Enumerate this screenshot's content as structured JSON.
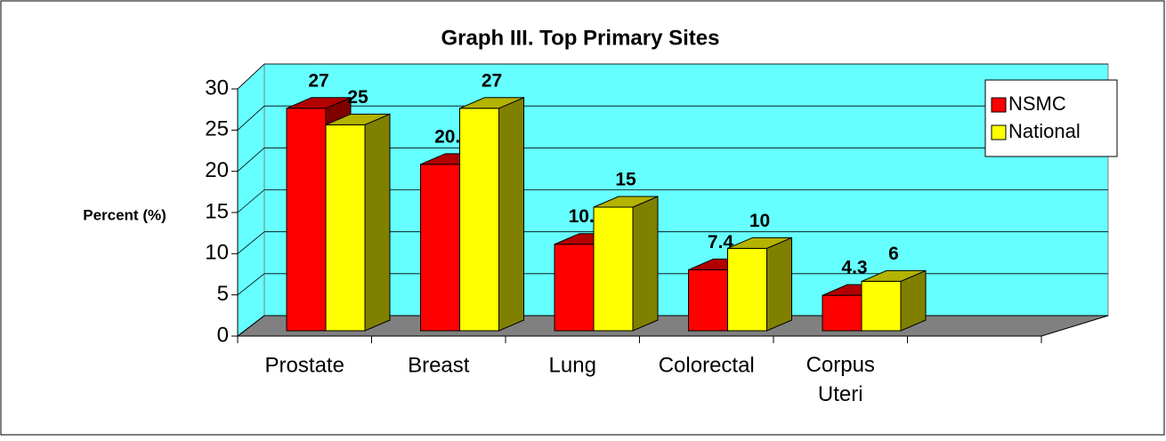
{
  "chart_data": {
    "type": "bar3d",
    "title": "Graph III. Top Primary Sites",
    "y_label": "Percent (%)",
    "categories": [
      "Prostate",
      "Breast",
      "Lung",
      "Colorectal",
      "Corpus Uteri"
    ],
    "series": [
      {
        "name": "NSMC",
        "color": "#ff0000",
        "values": [
          27,
          20.2,
          10.5,
          7.4,
          4.3
        ]
      },
      {
        "name": "National",
        "color": "#ffff00",
        "values": [
          25,
          27,
          15,
          10,
          6
        ]
      }
    ],
    "ylim": [
      0,
      30
    ],
    "yticks": [
      0,
      5,
      10,
      15,
      20,
      25,
      30
    ],
    "grid": true,
    "legend": "top-right",
    "wall_color": "#66ffff",
    "floor_color": "#808080"
  }
}
